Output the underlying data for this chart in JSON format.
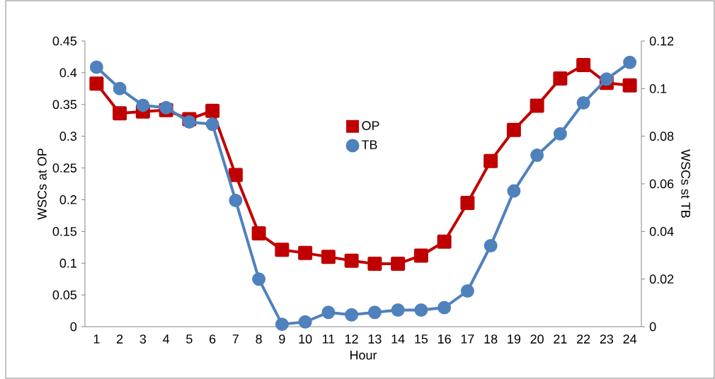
{
  "chart_data": {
    "type": "line",
    "xlabel": "Hour",
    "ylabel": "WSCs at OP",
    "y2label": "WSCs st TB",
    "categories": [
      "1",
      "2",
      "3",
      "4",
      "5",
      "6",
      "7",
      "8",
      "9",
      "10",
      "11",
      "12",
      "13",
      "14",
      "15",
      "16",
      "17",
      "18",
      "19",
      "20",
      "21",
      "22",
      "23",
      "24"
    ],
    "series": [
      {
        "name": "OP",
        "color": "#c00000",
        "marker": "square",
        "values": [
          0.383,
          0.336,
          0.339,
          0.341,
          0.327,
          0.34,
          0.239,
          0.147,
          0.121,
          0.116,
          0.11,
          0.104,
          0.099,
          0.099,
          0.112,
          0.134,
          0.195,
          0.261,
          0.31,
          0.348,
          0.391,
          0.412,
          0.384,
          0.38
        ]
      },
      {
        "name": "TB",
        "color": "#4f81bd",
        "marker": "circle",
        "axis": "y2",
        "values": [
          0.109,
          0.1,
          0.093,
          0.092,
          0.086,
          0.085,
          0.053,
          0.02,
          0.001,
          0.002,
          0.006,
          0.005,
          0.006,
          0.007,
          0.007,
          0.008,
          0.015,
          0.034,
          0.057,
          0.072,
          0.081,
          0.094,
          0.104,
          0.111
        ]
      }
    ],
    "ylim": [
      0,
      0.45
    ],
    "yticks": [
      0,
      0.05,
      0.1,
      0.15,
      0.2,
      0.25,
      0.3,
      0.35,
      0.4,
      0.45
    ],
    "y2lim": [
      0,
      0.12
    ],
    "y2ticks": [
      0,
      0.02,
      0.04,
      0.06,
      0.08,
      0.1,
      0.12
    ],
    "grid": false,
    "legend": "top",
    "line_style": "solid"
  }
}
